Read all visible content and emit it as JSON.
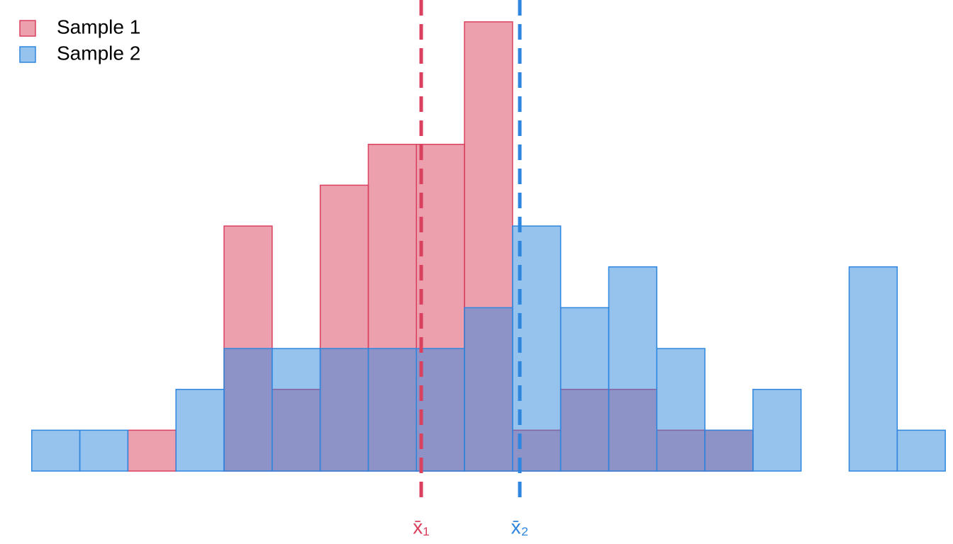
{
  "chart_data": {
    "type": "histogram",
    "bins": [
      0,
      1,
      2,
      3,
      4,
      5,
      6,
      7,
      8,
      9,
      10,
      11,
      12,
      13,
      14,
      15,
      16,
      17,
      18,
      19
    ],
    "series": [
      {
        "name": "Sample 1",
        "color": "#d9415e",
        "values": [
          0,
          0,
          1,
          0,
          6,
          2,
          7,
          8,
          8,
          11,
          1,
          2,
          2,
          1,
          1,
          0,
          0,
          0,
          0
        ]
      },
      {
        "name": "Sample 2",
        "color": "#2e86de",
        "values": [
          1,
          1,
          0,
          2,
          3,
          3,
          3,
          3,
          3,
          4,
          6,
          4,
          5,
          3,
          1,
          2,
          0,
          5,
          1
        ]
      }
    ],
    "annotations": [
      {
        "label": "x̄₁",
        "x": 8.1,
        "color": "#d9415e"
      },
      {
        "label": "x̄₂",
        "x": 10.15,
        "color": "#2e86de"
      }
    ],
    "xlim": [
      -0.66,
      19.16
    ],
    "ylim": [
      0,
      11.5
    ],
    "legend": "upper left"
  }
}
